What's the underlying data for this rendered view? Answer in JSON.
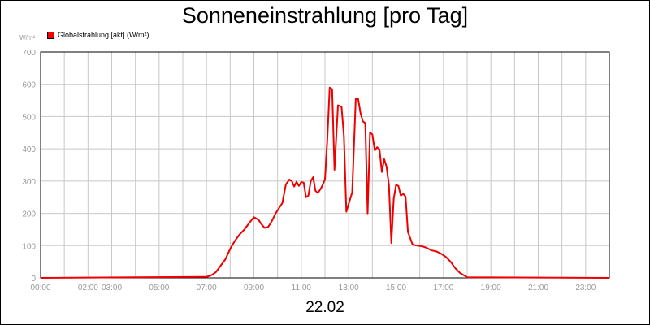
{
  "chart_data": {
    "type": "line",
    "title": "Sonneneinstrahlung [pro Tag]",
    "date_label": "22.02",
    "unit_label": "W/m²",
    "legend_placement": "top-left",
    "grid": true,
    "ylim": [
      0,
      700
    ],
    "xlim": [
      0,
      24
    ],
    "y_ticks": [
      {
        "v": 0,
        "label": "0"
      },
      {
        "v": 100,
        "label": "100"
      },
      {
        "v": 200,
        "label": "200"
      },
      {
        "v": 300,
        "label": "300"
      },
      {
        "v": 400,
        "label": "400"
      },
      {
        "v": 500,
        "label": "500"
      },
      {
        "v": 600,
        "label": "600"
      },
      {
        "v": 700,
        "label": "700"
      }
    ],
    "x_ticks": [
      {
        "v": 0,
        "label": "00:00"
      },
      {
        "v": 2,
        "label": "02:00"
      },
      {
        "v": 3,
        "label": "03:00"
      },
      {
        "v": 5,
        "label": "05:00"
      },
      {
        "v": 7,
        "label": "07:00"
      },
      {
        "v": 9,
        "label": "09:00"
      },
      {
        "v": 11,
        "label": "11:00"
      },
      {
        "v": 13,
        "label": "13:00"
      },
      {
        "v": 15,
        "label": "15:00"
      },
      {
        "v": 17,
        "label": "17:00"
      },
      {
        "v": 19,
        "label": "19:00"
      },
      {
        "v": 21,
        "label": "21:00"
      },
      {
        "v": 23,
        "label": "23:00"
      }
    ],
    "series": [
      {
        "name": "Globalstrahlung [akt] (W/m²)",
        "color": "#ee0000",
        "x": [
          0,
          7.0,
          7.2,
          7.4,
          7.6,
          7.8,
          8.0,
          8.2,
          8.4,
          8.6,
          8.8,
          9.0,
          9.2,
          9.3,
          9.45,
          9.6,
          9.75,
          9.9,
          10.05,
          10.2,
          10.35,
          10.5,
          10.6,
          10.7,
          10.8,
          10.9,
          11.0,
          11.1,
          11.2,
          11.3,
          11.4,
          11.5,
          11.6,
          11.7,
          11.85,
          12.0,
          12.1,
          12.2,
          12.3,
          12.4,
          12.55,
          12.7,
          12.8,
          12.9,
          13.0,
          13.15,
          13.3,
          13.4,
          13.5,
          13.6,
          13.7,
          13.8,
          13.9,
          14.0,
          14.1,
          14.2,
          14.3,
          14.4,
          14.5,
          14.6,
          14.7,
          14.8,
          14.9,
          15.0,
          15.1,
          15.2,
          15.3,
          15.4,
          15.5,
          15.7,
          15.9,
          16.1,
          16.3,
          16.5,
          16.7,
          16.9,
          17.1,
          17.3,
          17.5,
          17.7,
          18.0,
          24.0
        ],
        "y": [
          0,
          3,
          8,
          18,
          38,
          58,
          90,
          115,
          135,
          150,
          170,
          188,
          180,
          168,
          155,
          158,
          175,
          198,
          215,
          232,
          290,
          305,
          300,
          283,
          298,
          285,
          297,
          295,
          250,
          255,
          300,
          312,
          270,
          263,
          280,
          305,
          430,
          590,
          585,
          335,
          535,
          530,
          440,
          205,
          230,
          265,
          555,
          555,
          510,
          485,
          480,
          200,
          450,
          445,
          395,
          405,
          398,
          328,
          368,
          345,
          288,
          108,
          245,
          288,
          285,
          255,
          260,
          252,
          142,
          103,
          100,
          98,
          93,
          85,
          82,
          75,
          65,
          50,
          30,
          15,
          2,
          0
        ]
      }
    ]
  }
}
